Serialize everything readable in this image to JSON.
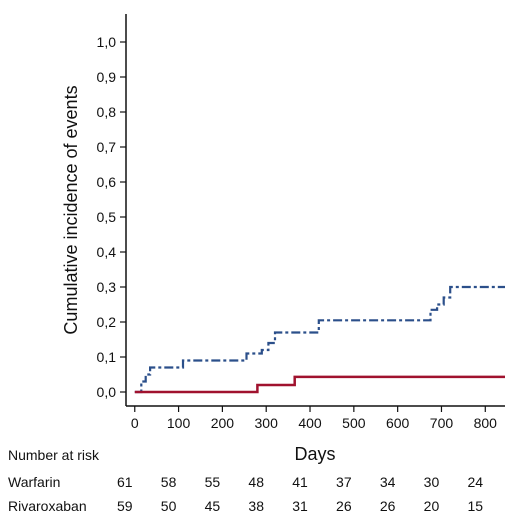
{
  "chart_data": {
    "type": "line",
    "xlabel": "Days",
    "ylabel": "Cumulative incidence of events",
    "xlim": [
      -20,
      845
    ],
    "ylim": [
      -0.04,
      1.08
    ],
    "x_ticks": [
      0,
      100,
      200,
      300,
      400,
      500,
      600,
      700,
      800
    ],
    "y_ticks": [
      0.0,
      0.1,
      0.2,
      0.3,
      0.4,
      0.5,
      0.6,
      0.7,
      0.8,
      0.9,
      1.0
    ],
    "y_tick_labels": [
      "0,0",
      "0,1",
      "0,2",
      "0,3",
      "0,4",
      "0,5",
      "0,6",
      "0,7",
      "0,8",
      "0,9",
      "1,0"
    ],
    "grid": false,
    "legend": "none",
    "series": [
      {
        "key": "warfarin",
        "color": "#2b4f8a",
        "line_style": "dash-dot",
        "x": [
          0,
          15,
          15,
          25,
          25,
          35,
          35,
          110,
          110,
          255,
          255,
          290,
          290,
          305,
          305,
          320,
          320,
          420,
          420,
          675,
          675,
          690,
          690,
          705,
          705,
          720,
          720,
          845
        ],
        "y": [
          0.0,
          0.0,
          0.03,
          0.03,
          0.05,
          0.05,
          0.07,
          0.07,
          0.09,
          0.09,
          0.11,
          0.11,
          0.12,
          0.12,
          0.14,
          0.14,
          0.17,
          0.17,
          0.205,
          0.205,
          0.235,
          0.235,
          0.25,
          0.25,
          0.27,
          0.27,
          0.3,
          0.3
        ]
      },
      {
        "key": "rivaroxaban",
        "color": "#a0122e",
        "line_style": "solid",
        "x": [
          0,
          280,
          280,
          365,
          365,
          845
        ],
        "y": [
          0.0,
          0.0,
          0.02,
          0.02,
          0.043,
          0.043
        ]
      }
    ],
    "risk_table": {
      "header": "Number at risk",
      "times": [
        0,
        100,
        200,
        300,
        400,
        500,
        600,
        700,
        800
      ],
      "rows": [
        {
          "label": "Warfarin",
          "values": [
            "61",
            "58",
            "55",
            "48",
            "41",
            "37",
            "34",
            "30",
            "24"
          ]
        },
        {
          "label": "Rivaroxaban",
          "values": [
            "59",
            "50",
            "45",
            "38",
            "31",
            "26",
            "26",
            "20",
            "15"
          ]
        }
      ]
    }
  }
}
